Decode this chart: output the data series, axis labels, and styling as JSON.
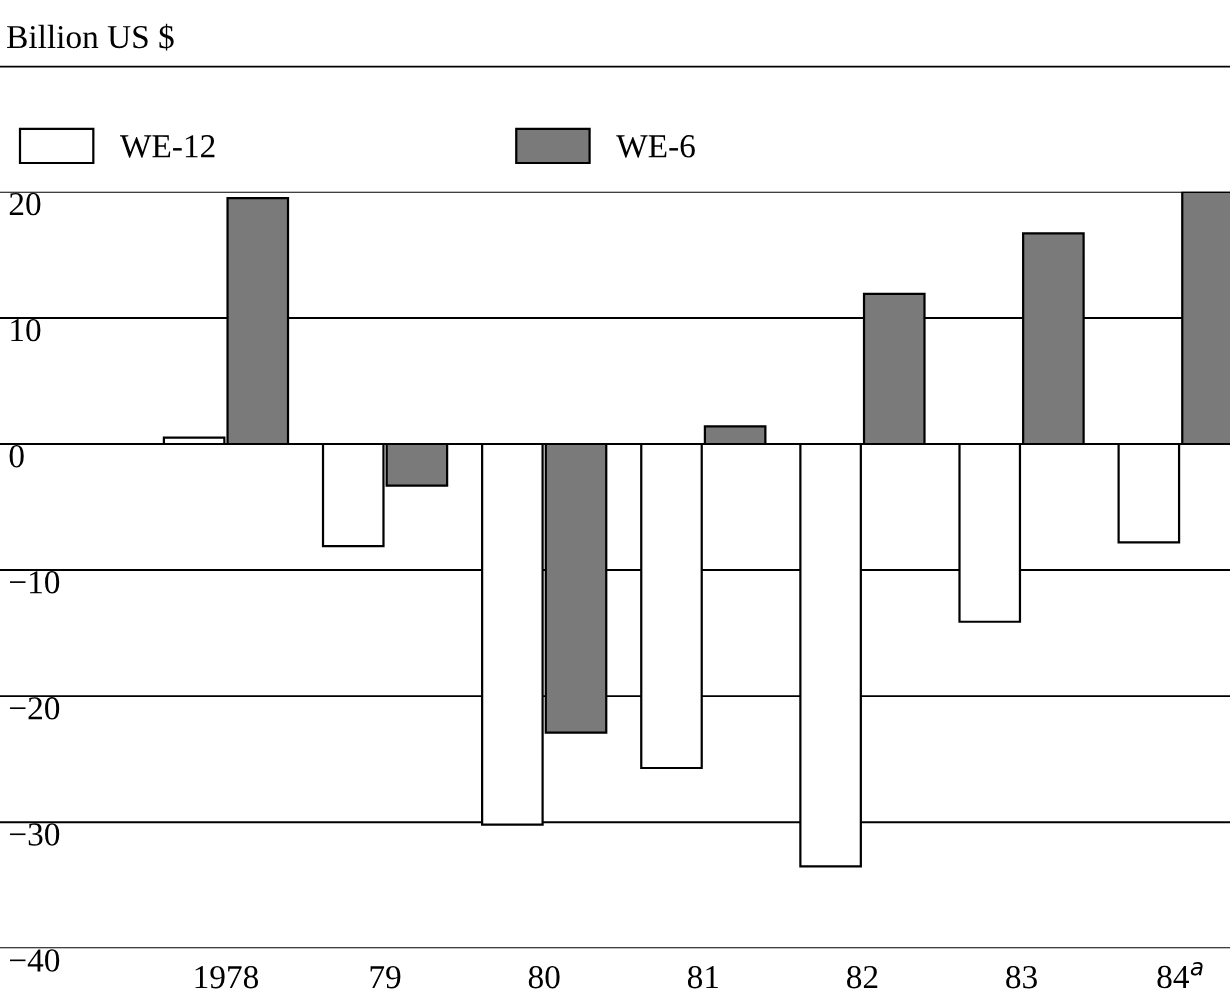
{
  "chart_data": {
    "type": "bar",
    "ylabel": "Billion US $",
    "categories": [
      "1978",
      "79",
      "80",
      "81",
      "82",
      "83",
      "84$^{a}$"
    ],
    "series": [
      {
        "name": "WE-12",
        "color": "#ffffff",
        "values": [
          0.5,
          -8.1,
          -30.2,
          -25.7,
          -33.5,
          -14.1,
          -7.8
        ]
      },
      {
        "name": "WE-6",
        "color": "#7a7a7a",
        "values": [
          19.5,
          -3.3,
          -22.9,
          1.4,
          11.9,
          16.7,
          20
        ]
      }
    ],
    "ylim": [
      -40,
      20
    ],
    "yticks": [
      -40,
      -30,
      -20,
      -10,
      0,
      10,
      20
    ],
    "grid": "y",
    "legend": "top left"
  }
}
